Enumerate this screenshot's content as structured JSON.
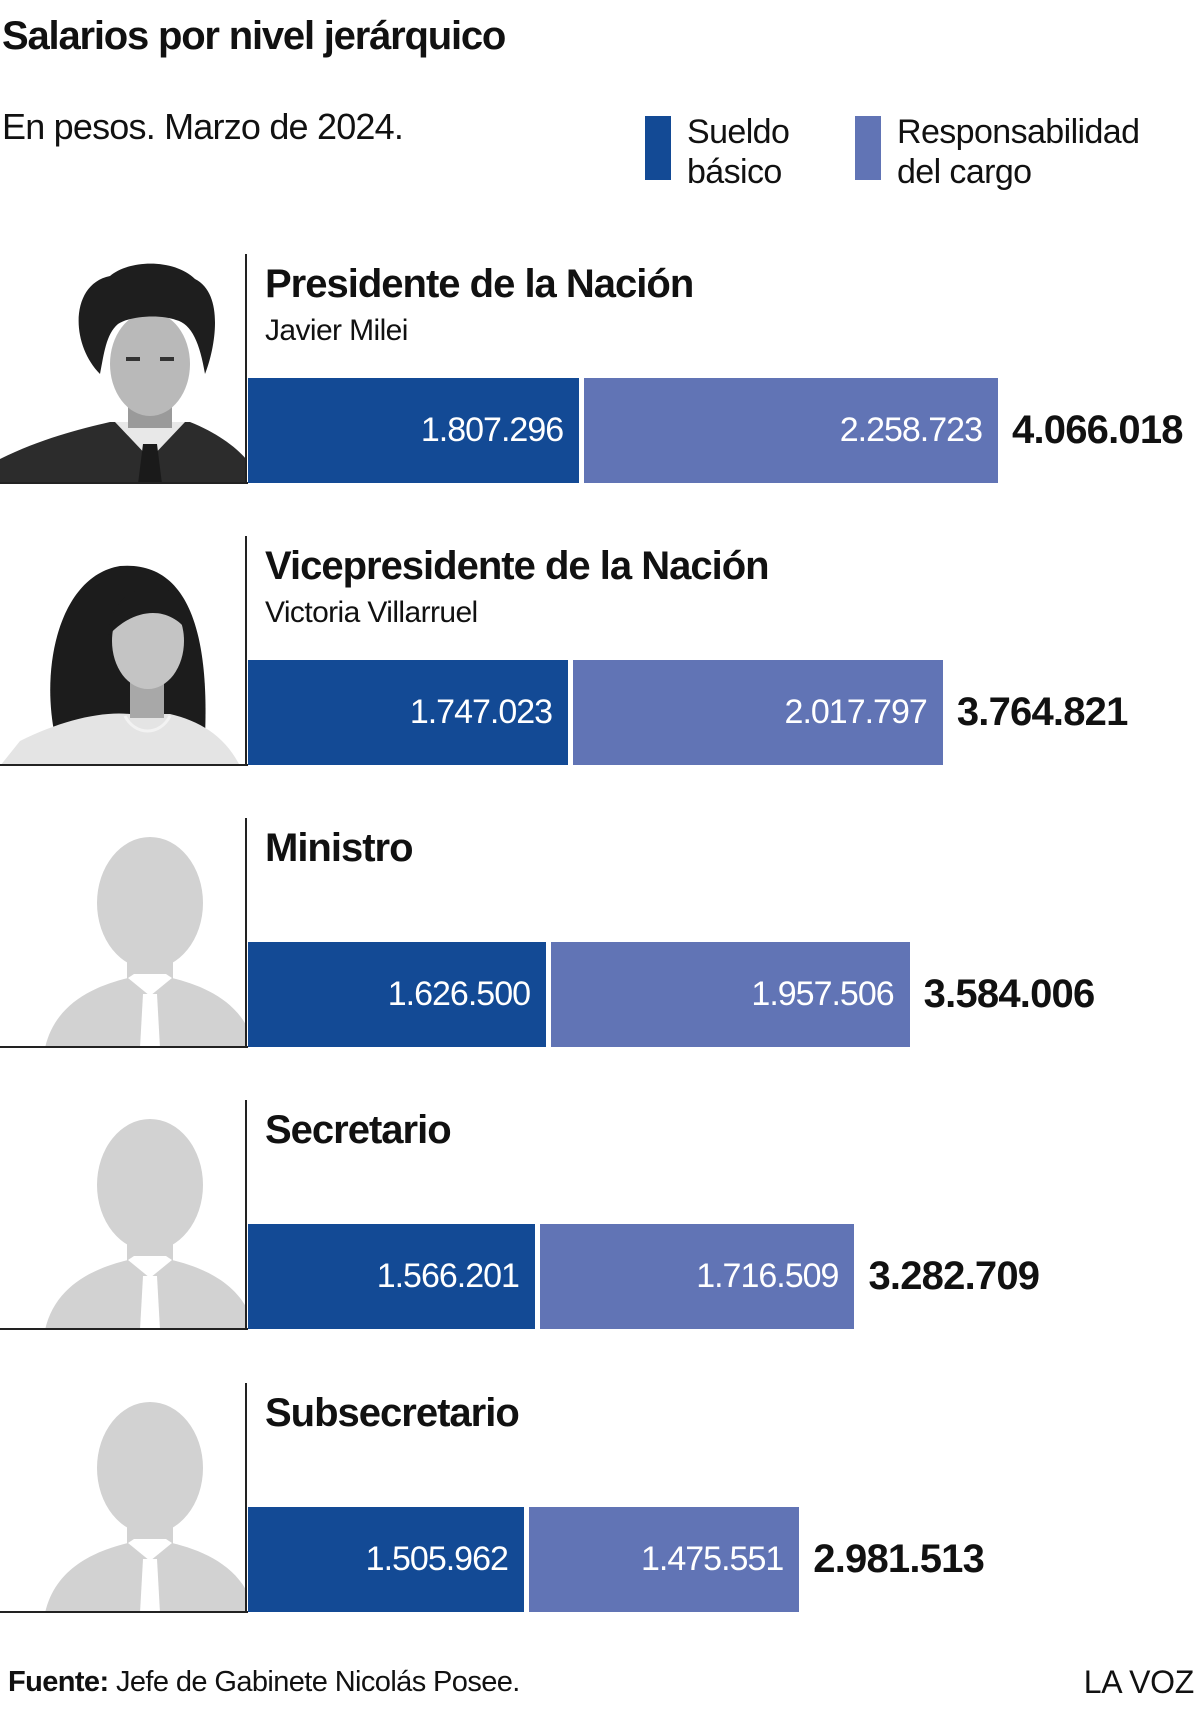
{
  "header": {
    "title": "Salarios por nivel jerárquico",
    "subtitle": "En pesos. Marzo de 2024."
  },
  "legend": [
    {
      "line1": "Sueldo",
      "line2": "básico",
      "color": "#134a95"
    },
    {
      "line1": "Responsabilidad",
      "line2": "del cargo",
      "color": "#6174b5"
    }
  ],
  "chart_data": {
    "type": "bar",
    "stacked": true,
    "orientation": "horizontal",
    "title": "Salarios por nivel jerárquico",
    "subtitle": "En pesos. Marzo de 2024.",
    "categories": [
      "Presidente de la Nación",
      "Vicepresidente de la Nación",
      "Ministro",
      "Secretario",
      "Subsecretario"
    ],
    "series": [
      {
        "name": "Sueldo básico",
        "color": "#134a95",
        "values": [
          1807296,
          1747023,
          1626500,
          1566201,
          1505962
        ]
      },
      {
        "name": "Responsabilidad del cargo",
        "color": "#6174b5",
        "values": [
          2258723,
          2017797,
          1957506,
          1716509,
          1475551
        ]
      }
    ],
    "totals": [
      4066018,
      3764821,
      3584006,
      3282709,
      2981513
    ],
    "legend_position": "top-right",
    "grid": false,
    "xlim": [
      0,
      4066018
    ]
  },
  "rows": [
    {
      "title": "Presidente de la Nación",
      "person": "Javier Milei",
      "avatar": "man-photo-icon",
      "basic_label": "1.807.296",
      "resp_label": "2.258.723",
      "total_label": "4.066.018"
    },
    {
      "title": "Vicepresidente de la Nación",
      "person": "Victoria Villarruel",
      "avatar": "woman-photo-icon",
      "basic_label": "1.747.023",
      "resp_label": "2.017.797",
      "total_label": "3.764.821"
    },
    {
      "title": "Ministro",
      "person": "",
      "avatar": "person-silhouette-icon",
      "basic_label": "1.626.500",
      "resp_label": "1.957.506",
      "total_label": "3.584.006"
    },
    {
      "title": "Secretario",
      "person": "",
      "avatar": "person-silhouette-icon",
      "basic_label": "1.566.201",
      "resp_label": "1.716.509",
      "total_label": "3.282.709"
    },
    {
      "title": "Subsecretario",
      "person": "",
      "avatar": "person-silhouette-icon",
      "basic_label": "1.505.962",
      "resp_label": "1.475.551",
      "total_label": "2.981.513"
    }
  ],
  "footer": {
    "source_label": "Fuente:",
    "source_text": " Jefe de Gabinete Nicolás Posee.",
    "brand": "LA VOZ"
  }
}
